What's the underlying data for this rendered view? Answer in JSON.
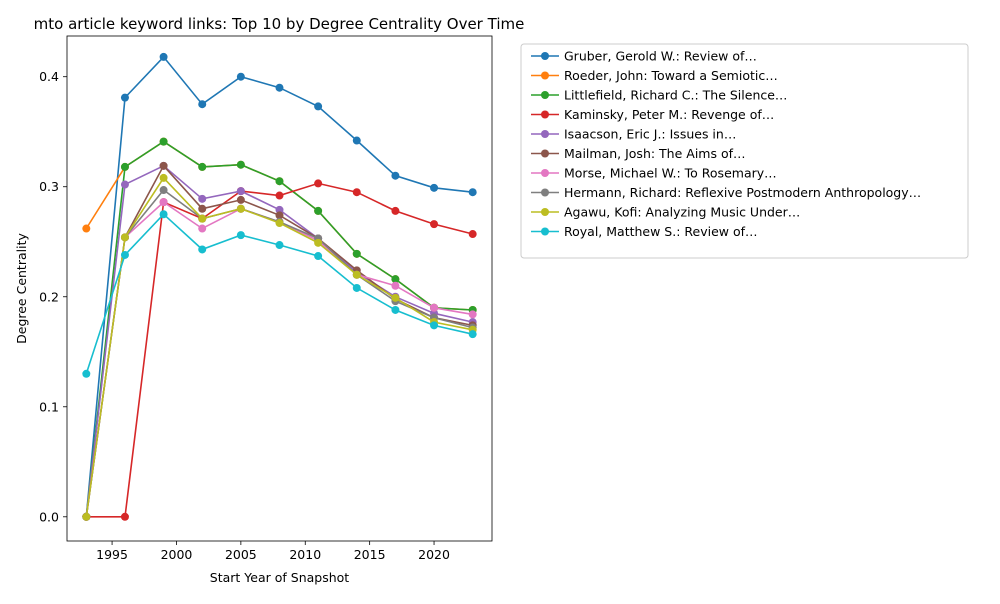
{
  "chart_data": {
    "type": "line",
    "title": "mto article keyword links: Top 10 by Degree Centrality Over Time",
    "xlabel": "Start Year of Snapshot",
    "ylabel": "Degree Centrality",
    "x": [
      1993,
      1996,
      1999,
      2002,
      2005,
      2008,
      2011,
      2014,
      2017,
      2020,
      2023
    ],
    "xlim": [
      1991.5,
      2024.5
    ],
    "ylim": [
      -0.022,
      0.437
    ],
    "xticks": [
      1995,
      2000,
      2005,
      2010,
      2015,
      2020
    ],
    "yticks": [
      0.0,
      0.1,
      0.2,
      0.3,
      0.4
    ],
    "xtick_labels": [
      "1995",
      "2000",
      "2005",
      "2010",
      "2015",
      "2020"
    ],
    "ytick_labels": [
      "0.0",
      "0.1",
      "0.2",
      "0.3",
      "0.4"
    ],
    "grid": false,
    "legend_position": "outside-right",
    "series": [
      {
        "name": "Gruber, Gerold W.: Review of…",
        "color": "#1f77b4",
        "values": [
          0.0,
          0.381,
          0.418,
          0.375,
          0.4,
          0.39,
          0.373,
          0.342,
          0.31,
          0.299,
          0.295
        ]
      },
      {
        "name": "Roeder, John: Toward a Semiotic…",
        "color": "#ff7f0e",
        "values": [
          0.262,
          0.318,
          0.341,
          0.318,
          0.32,
          0.305,
          0.278,
          0.239,
          0.216,
          0.19,
          0.188
        ]
      },
      {
        "name": "Littlefield, Richard C.: The Silence…",
        "color": "#2ca02c",
        "values": [
          0.0,
          0.318,
          0.341,
          0.318,
          0.32,
          0.305,
          0.278,
          0.239,
          0.216,
          0.19,
          0.188
        ]
      },
      {
        "name": "Kaminsky, Peter M.: Revenge of…",
        "color": "#d62728",
        "values": [
          0.0,
          0.0,
          0.286,
          0.271,
          0.296,
          0.292,
          0.303,
          0.295,
          0.278,
          0.266,
          0.257
        ]
      },
      {
        "name": "Isaacson, Eric J.: Issues in…",
        "color": "#9467bd",
        "values": [
          0.0,
          0.302,
          0.319,
          0.289,
          0.296,
          0.279,
          0.253,
          0.222,
          0.2,
          0.185,
          0.177
        ]
      },
      {
        "name": "Mailman, Josh: The Aims of…",
        "color": "#8c564b",
        "values": [
          0.0,
          0.254,
          0.319,
          0.28,
          0.288,
          0.274,
          0.253,
          0.224,
          0.198,
          0.181,
          0.174
        ]
      },
      {
        "name": "Morse, Michael W.: To Rosemary…",
        "color": "#e377c2",
        "values": [
          0.0,
          0.254,
          0.286,
          0.262,
          0.28,
          0.268,
          0.251,
          0.22,
          0.21,
          0.19,
          0.184
        ]
      },
      {
        "name": "Hermann, Richard: Reflexive Postmodern Anthropology…",
        "color": "#7f7f7f",
        "values": [
          0.0,
          0.254,
          0.297,
          0.271,
          0.28,
          0.268,
          0.253,
          0.22,
          0.196,
          0.181,
          0.172
        ]
      },
      {
        "name": "Agawu, Kofi: Analyzing Music Under…",
        "color": "#bcbd22",
        "values": [
          0.0,
          0.254,
          0.308,
          0.271,
          0.28,
          0.267,
          0.249,
          0.22,
          0.199,
          0.177,
          0.17
        ]
      },
      {
        "name": "Royal, Matthew S.: Review of…",
        "color": "#17becf",
        "values": [
          0.13,
          0.238,
          0.275,
          0.243,
          0.256,
          0.247,
          0.237,
          0.208,
          0.188,
          0.174,
          0.166
        ]
      }
    ]
  }
}
